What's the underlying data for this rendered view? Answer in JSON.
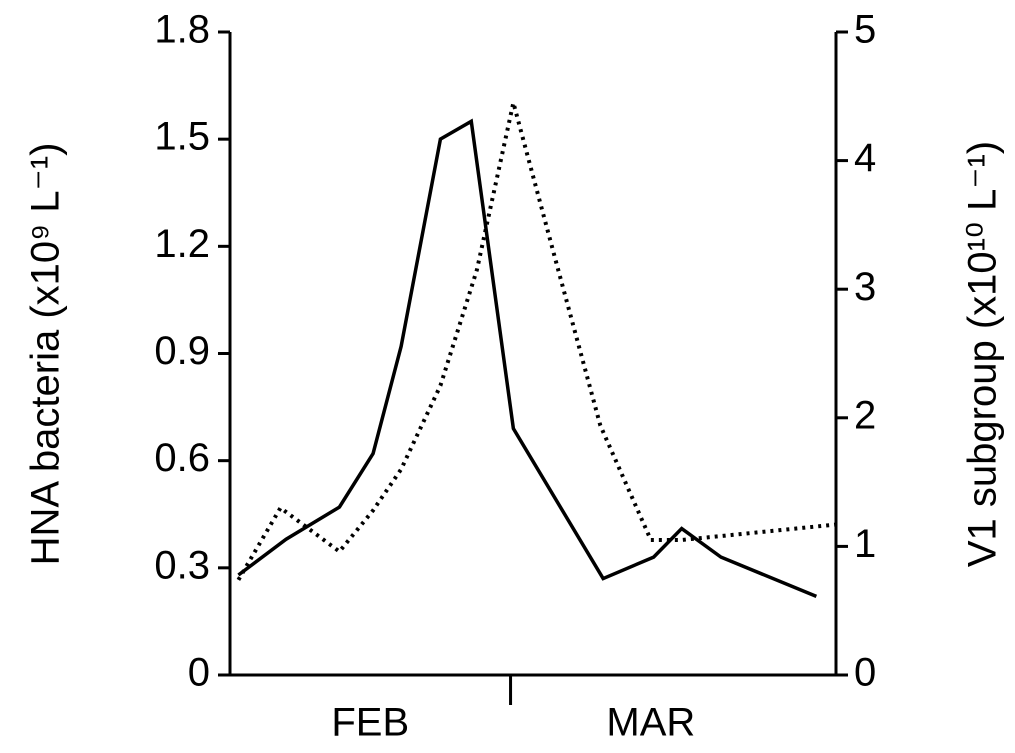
{
  "chart_data": {
    "type": "line",
    "y_label": "HNA bacteria (x10⁹ L⁻¹)",
    "y2_label": "V1 subgroup (x10¹⁰ L⁻¹)",
    "x_categories": [
      "FEB",
      "MAR"
    ],
    "x_category_positions": [
      0.5,
      1.5
    ],
    "xlim": [
      0,
      2.16
    ],
    "xticks": [
      1
    ],
    "ylim": [
      0,
      1.8
    ],
    "yticks": [
      0,
      0.3,
      0.6,
      0.9,
      1.2,
      1.5,
      1.8
    ],
    "y2lim": [
      0,
      5
    ],
    "y2ticks": [
      0,
      1,
      2,
      3,
      4,
      5
    ],
    "series": [
      {
        "color": "#000000",
        "dash": false,
        "axis": "y",
        "x": [
          0.03,
          0.2,
          0.39,
          0.51,
          0.61,
          0.75,
          0.86,
          1.01,
          1.33,
          1.51,
          1.61,
          1.75,
          2.09
        ],
        "values": [
          0.28,
          0.38,
          0.47,
          0.62,
          0.92,
          1.5,
          1.55,
          0.69,
          0.27,
          0.33,
          0.41,
          0.33,
          0.22
        ]
      },
      {
        "color": "#000000",
        "dash": true,
        "axis": "y2",
        "x": [
          0.03,
          0.18,
          0.39,
          0.51,
          0.61,
          0.75,
          0.88,
          1.01,
          1.16,
          1.32,
          1.5,
          1.61,
          2.16
        ],
        "values": [
          0.74,
          1.3,
          0.96,
          1.28,
          1.6,
          2.25,
          3.15,
          4.45,
          3.23,
          1.94,
          1.05,
          1.05,
          1.17
        ]
      }
    ]
  }
}
